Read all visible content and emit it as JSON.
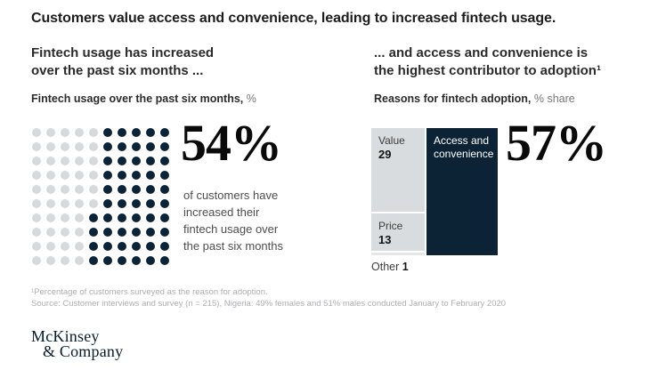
{
  "exhibit": {
    "title": "Customers value access and convenience, leading to increased fintech usage.",
    "left_section": {
      "heading": "Fintech usage has increased\nover the past six months ...",
      "subtitle_bold": "Fintech usage over the past six months,",
      "subtitle_rest": " %"
    },
    "right_section": {
      "heading": "... and access and convenience is\nthe highest contributor to adoption¹",
      "subtitle_bold": "Reasons for fintech adoption,",
      "subtitle_rest": " % share"
    },
    "footnote_line1": "¹Percentage of customers surveyed as the reason for adoption.",
    "footnote_line2": "Source: Customer interviews and survey (n = 215), Nigeria: 49% females and 51% males conducted January to February 2020",
    "logo_line1": "McKinsey",
    "logo_line2": "& Company"
  },
  "colors": {
    "brand_dark_navy": "#0b2335",
    "waffle_empty_gray": "#d7dadd",
    "block_gray": "#d9dcde",
    "block_gray_light": "#e4e6e8",
    "caption_gray": "#4d4d4d",
    "footnote_gray": "#aeaeb1"
  },
  "chart_data": [
    {
      "type": "waffle",
      "title": "Fintech usage over the past six months, %",
      "rows": 10,
      "cols": 10,
      "value_percent": 54,
      "filled_per_row_right_aligned": [
        5,
        5,
        5,
        5,
        5,
        5,
        6,
        6,
        6,
        6
      ],
      "filled_color": "#0b2335",
      "empty_color": "#d7dadd",
      "callout_value": "54%",
      "callout_caption": "of customers have increased their fintech usage over the past six months"
    },
    {
      "type": "treemap",
      "title": "Reasons for fintech adoption, % share",
      "total": 100,
      "callout_value": "57%",
      "segments": [
        {
          "label": "Access and convenience",
          "value": 57,
          "column": "right",
          "color": "#0b2335",
          "text_color": "#ffffff",
          "show_value_inside": false
        },
        {
          "label": "Value",
          "value": 29,
          "column": "left",
          "color": "#d9dcde",
          "show_value_inside": true
        },
        {
          "label": "Price",
          "value": 13,
          "column": "left",
          "color": "#d9dcde",
          "show_value_inside": true
        },
        {
          "label": "Other",
          "value": 1,
          "column": "left",
          "color": "#e4e6e8",
          "label_outside": true
        }
      ]
    }
  ]
}
